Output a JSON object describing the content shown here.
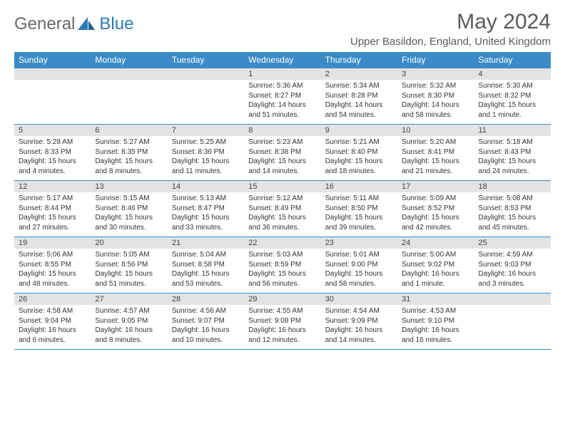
{
  "logo": {
    "text1": "General",
    "text2": "Blue"
  },
  "title": "May 2024",
  "location": "Upper Basildon, England, United Kingdom",
  "colors": {
    "header_bg": "#3b8bc8",
    "header_text": "#ffffff",
    "daynum_bg": "#e3e3e3",
    "rule": "#3b8bc8",
    "logo_gray": "#6a6a6a",
    "logo_blue": "#2a7ab9"
  },
  "day_headers": [
    "Sunday",
    "Monday",
    "Tuesday",
    "Wednesday",
    "Thursday",
    "Friday",
    "Saturday"
  ],
  "weeks": [
    [
      {
        "n": "",
        "sr": "",
        "ss": "",
        "dl": ""
      },
      {
        "n": "",
        "sr": "",
        "ss": "",
        "dl": ""
      },
      {
        "n": "",
        "sr": "",
        "ss": "",
        "dl": ""
      },
      {
        "n": "1",
        "sr": "Sunrise: 5:36 AM",
        "ss": "Sunset: 8:27 PM",
        "dl": "Daylight: 14 hours and 51 minutes."
      },
      {
        "n": "2",
        "sr": "Sunrise: 5:34 AM",
        "ss": "Sunset: 8:28 PM",
        "dl": "Daylight: 14 hours and 54 minutes."
      },
      {
        "n": "3",
        "sr": "Sunrise: 5:32 AM",
        "ss": "Sunset: 8:30 PM",
        "dl": "Daylight: 14 hours and 58 minutes."
      },
      {
        "n": "4",
        "sr": "Sunrise: 5:30 AM",
        "ss": "Sunset: 8:32 PM",
        "dl": "Daylight: 15 hours and 1 minute."
      }
    ],
    [
      {
        "n": "5",
        "sr": "Sunrise: 5:28 AM",
        "ss": "Sunset: 8:33 PM",
        "dl": "Daylight: 15 hours and 4 minutes."
      },
      {
        "n": "6",
        "sr": "Sunrise: 5:27 AM",
        "ss": "Sunset: 8:35 PM",
        "dl": "Daylight: 15 hours and 8 minutes."
      },
      {
        "n": "7",
        "sr": "Sunrise: 5:25 AM",
        "ss": "Sunset: 8:36 PM",
        "dl": "Daylight: 15 hours and 11 minutes."
      },
      {
        "n": "8",
        "sr": "Sunrise: 5:23 AM",
        "ss": "Sunset: 8:38 PM",
        "dl": "Daylight: 15 hours and 14 minutes."
      },
      {
        "n": "9",
        "sr": "Sunrise: 5:21 AM",
        "ss": "Sunset: 8:40 PM",
        "dl": "Daylight: 15 hours and 18 minutes."
      },
      {
        "n": "10",
        "sr": "Sunrise: 5:20 AM",
        "ss": "Sunset: 8:41 PM",
        "dl": "Daylight: 15 hours and 21 minutes."
      },
      {
        "n": "11",
        "sr": "Sunrise: 5:18 AM",
        "ss": "Sunset: 8:43 PM",
        "dl": "Daylight: 15 hours and 24 minutes."
      }
    ],
    [
      {
        "n": "12",
        "sr": "Sunrise: 5:17 AM",
        "ss": "Sunset: 8:44 PM",
        "dl": "Daylight: 15 hours and 27 minutes."
      },
      {
        "n": "13",
        "sr": "Sunrise: 5:15 AM",
        "ss": "Sunset: 8:46 PM",
        "dl": "Daylight: 15 hours and 30 minutes."
      },
      {
        "n": "14",
        "sr": "Sunrise: 5:13 AM",
        "ss": "Sunset: 8:47 PM",
        "dl": "Daylight: 15 hours and 33 minutes."
      },
      {
        "n": "15",
        "sr": "Sunrise: 5:12 AM",
        "ss": "Sunset: 8:49 PM",
        "dl": "Daylight: 15 hours and 36 minutes."
      },
      {
        "n": "16",
        "sr": "Sunrise: 5:11 AM",
        "ss": "Sunset: 8:50 PM",
        "dl": "Daylight: 15 hours and 39 minutes."
      },
      {
        "n": "17",
        "sr": "Sunrise: 5:09 AM",
        "ss": "Sunset: 8:52 PM",
        "dl": "Daylight: 15 hours and 42 minutes."
      },
      {
        "n": "18",
        "sr": "Sunrise: 5:08 AM",
        "ss": "Sunset: 8:53 PM",
        "dl": "Daylight: 15 hours and 45 minutes."
      }
    ],
    [
      {
        "n": "19",
        "sr": "Sunrise: 5:06 AM",
        "ss": "Sunset: 8:55 PM",
        "dl": "Daylight: 15 hours and 48 minutes."
      },
      {
        "n": "20",
        "sr": "Sunrise: 5:05 AM",
        "ss": "Sunset: 8:56 PM",
        "dl": "Daylight: 15 hours and 51 minutes."
      },
      {
        "n": "21",
        "sr": "Sunrise: 5:04 AM",
        "ss": "Sunset: 8:58 PM",
        "dl": "Daylight: 15 hours and 53 minutes."
      },
      {
        "n": "22",
        "sr": "Sunrise: 5:03 AM",
        "ss": "Sunset: 8:59 PM",
        "dl": "Daylight: 15 hours and 56 minutes."
      },
      {
        "n": "23",
        "sr": "Sunrise: 5:01 AM",
        "ss": "Sunset: 9:00 PM",
        "dl": "Daylight: 15 hours and 58 minutes."
      },
      {
        "n": "24",
        "sr": "Sunrise: 5:00 AM",
        "ss": "Sunset: 9:02 PM",
        "dl": "Daylight: 16 hours and 1 minute."
      },
      {
        "n": "25",
        "sr": "Sunrise: 4:59 AM",
        "ss": "Sunset: 9:03 PM",
        "dl": "Daylight: 16 hours and 3 minutes."
      }
    ],
    [
      {
        "n": "26",
        "sr": "Sunrise: 4:58 AM",
        "ss": "Sunset: 9:04 PM",
        "dl": "Daylight: 16 hours and 6 minutes."
      },
      {
        "n": "27",
        "sr": "Sunrise: 4:57 AM",
        "ss": "Sunset: 9:05 PM",
        "dl": "Daylight: 16 hours and 8 minutes."
      },
      {
        "n": "28",
        "sr": "Sunrise: 4:56 AM",
        "ss": "Sunset: 9:07 PM",
        "dl": "Daylight: 16 hours and 10 minutes."
      },
      {
        "n": "29",
        "sr": "Sunrise: 4:55 AM",
        "ss": "Sunset: 9:08 PM",
        "dl": "Daylight: 16 hours and 12 minutes."
      },
      {
        "n": "30",
        "sr": "Sunrise: 4:54 AM",
        "ss": "Sunset: 9:09 PM",
        "dl": "Daylight: 16 hours and 14 minutes."
      },
      {
        "n": "31",
        "sr": "Sunrise: 4:53 AM",
        "ss": "Sunset: 9:10 PM",
        "dl": "Daylight: 16 hours and 16 minutes."
      },
      {
        "n": "",
        "sr": "",
        "ss": "",
        "dl": ""
      }
    ]
  ]
}
